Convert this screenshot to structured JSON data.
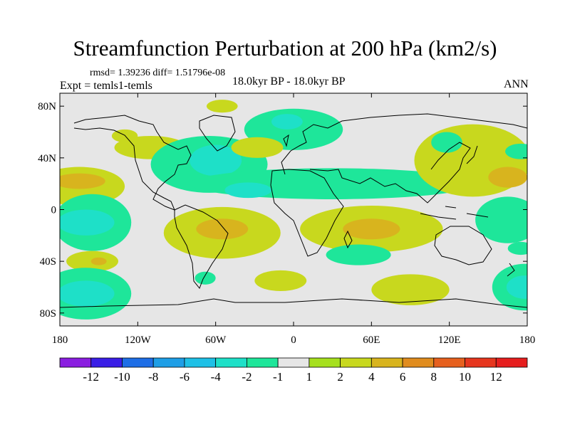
{
  "header": {
    "title": "Streamfunction Perturbation at 200 hPa (km2/s)",
    "stats": "rmsd= 1.39236 diff= 1.51796e-08",
    "experiment": "Expt = temls1-temls",
    "period": "18.0kyr BP - 18.0kyr BP",
    "season": "ANN"
  },
  "chart_data": {
    "type": "heatmap",
    "title": "Streamfunction Perturbation at 200 hPa (km2/s)",
    "x_range": [
      -180,
      180
    ],
    "y_range": [
      -90,
      90
    ],
    "x_ticks": [
      {
        "value": -180,
        "label": "180"
      },
      {
        "value": -120,
        "label": "120W"
      },
      {
        "value": -60,
        "label": "60W"
      },
      {
        "value": 0,
        "label": "0"
      },
      {
        "value": 60,
        "label": "60E"
      },
      {
        "value": 120,
        "label": "120E"
      },
      {
        "value": 180,
        "label": "180"
      }
    ],
    "y_ticks": [
      {
        "value": 80,
        "label": "80N"
      },
      {
        "value": 40,
        "label": "40N"
      },
      {
        "value": 0,
        "label": "0"
      },
      {
        "value": -40,
        "label": "40S"
      },
      {
        "value": -80,
        "label": "80S"
      }
    ],
    "colorbar": {
      "labels": [
        "-12",
        "-10",
        "-8",
        "-6",
        "-4",
        "-2",
        "-1",
        "1",
        "2",
        "4",
        "6",
        "8",
        "10",
        "12"
      ],
      "colors": [
        "#8a1ee0",
        "#3a1ee6",
        "#1e6ee6",
        "#1e9ee6",
        "#1ec0e6",
        "#1ee0c8",
        "#1ee69a",
        "#e6e6e6",
        "#a6e01e",
        "#c8d81e",
        "#d8b41e",
        "#e08c1e",
        "#e6601e",
        "#e6361e",
        "#e61e1e"
      ]
    },
    "anomalies": [
      {
        "lon": -165,
        "lat": 18,
        "rx": 35,
        "ry": 15,
        "level": "2"
      },
      {
        "lon": -165,
        "lat": 22,
        "rx": 20,
        "ry": 6,
        "level": "4"
      },
      {
        "lon": -110,
        "lat": 48,
        "rx": 28,
        "ry": 9,
        "level": "2"
      },
      {
        "lon": -130,
        "lat": 57,
        "rx": 10,
        "ry": 5,
        "level": "2"
      },
      {
        "lon": -65,
        "lat": 35,
        "rx": 45,
        "ry": 22,
        "level": "-1"
      },
      {
        "lon": -60,
        "lat": 38,
        "rx": 20,
        "ry": 12,
        "level": "-2"
      },
      {
        "lon": -55,
        "lat": 80,
        "rx": 12,
        "ry": 5,
        "level": "2"
      },
      {
        "lon": 0,
        "lat": 62,
        "rx": 38,
        "ry": 16,
        "level": "-1"
      },
      {
        "lon": -5,
        "lat": 68,
        "rx": 12,
        "ry": 6,
        "level": "-2"
      },
      {
        "lon": -28,
        "lat": 48,
        "rx": 20,
        "ry": 8,
        "level": "2"
      },
      {
        "lon": 30,
        "lat": 20,
        "rx": 110,
        "ry": 12,
        "level": "-1"
      },
      {
        "lon": -35,
        "lat": 15,
        "rx": 18,
        "ry": 6,
        "level": "-2"
      },
      {
        "lon": 138,
        "lat": 38,
        "rx": 45,
        "ry": 28,
        "level": "2"
      },
      {
        "lon": 118,
        "lat": 52,
        "rx": 12,
        "ry": 8,
        "level": "-1"
      },
      {
        "lon": 165,
        "lat": 25,
        "rx": 15,
        "ry": 8,
        "level": "4"
      },
      {
        "lon": 175,
        "lat": 45,
        "rx": 12,
        "ry": 6,
        "level": "-1"
      },
      {
        "lon": -155,
        "lat": -10,
        "rx": 30,
        "ry": 22,
        "level": "-1"
      },
      {
        "lon": -160,
        "lat": -10,
        "rx": 22,
        "ry": 10,
        "level": "-2"
      },
      {
        "lon": -155,
        "lat": -40,
        "rx": 20,
        "ry": 8,
        "level": "2"
      },
      {
        "lon": -150,
        "lat": -40,
        "rx": 6,
        "ry": 3,
        "level": "4"
      },
      {
        "lon": -160,
        "lat": -65,
        "rx": 35,
        "ry": 20,
        "level": "-1"
      },
      {
        "lon": -160,
        "lat": -65,
        "rx": 22,
        "ry": 10,
        "level": "-2"
      },
      {
        "lon": -55,
        "lat": -18,
        "rx": 45,
        "ry": 20,
        "level": "2"
      },
      {
        "lon": -55,
        "lat": -15,
        "rx": 20,
        "ry": 8,
        "level": "4"
      },
      {
        "lon": -68,
        "lat": -53,
        "rx": 8,
        "ry": 5,
        "level": "-1"
      },
      {
        "lon": -10,
        "lat": -55,
        "rx": 20,
        "ry": 8,
        "level": "2"
      },
      {
        "lon": 60,
        "lat": -15,
        "rx": 55,
        "ry": 18,
        "level": "2"
      },
      {
        "lon": 60,
        "lat": -15,
        "rx": 22,
        "ry": 8,
        "level": "4"
      },
      {
        "lon": 50,
        "lat": -35,
        "rx": 25,
        "ry": 8,
        "level": "-1"
      },
      {
        "lon": 90,
        "lat": -62,
        "rx": 30,
        "ry": 12,
        "level": "2"
      },
      {
        "lon": 165,
        "lat": -8,
        "rx": 25,
        "ry": 18,
        "level": "-1"
      },
      {
        "lon": 175,
        "lat": -30,
        "rx": 10,
        "ry": 5,
        "level": "-1"
      },
      {
        "lon": 178,
        "lat": -60,
        "rx": 25,
        "ry": 18,
        "level": "-1"
      },
      {
        "lon": 178,
        "lat": -60,
        "rx": 14,
        "ry": 9,
        "level": "-2"
      }
    ]
  }
}
